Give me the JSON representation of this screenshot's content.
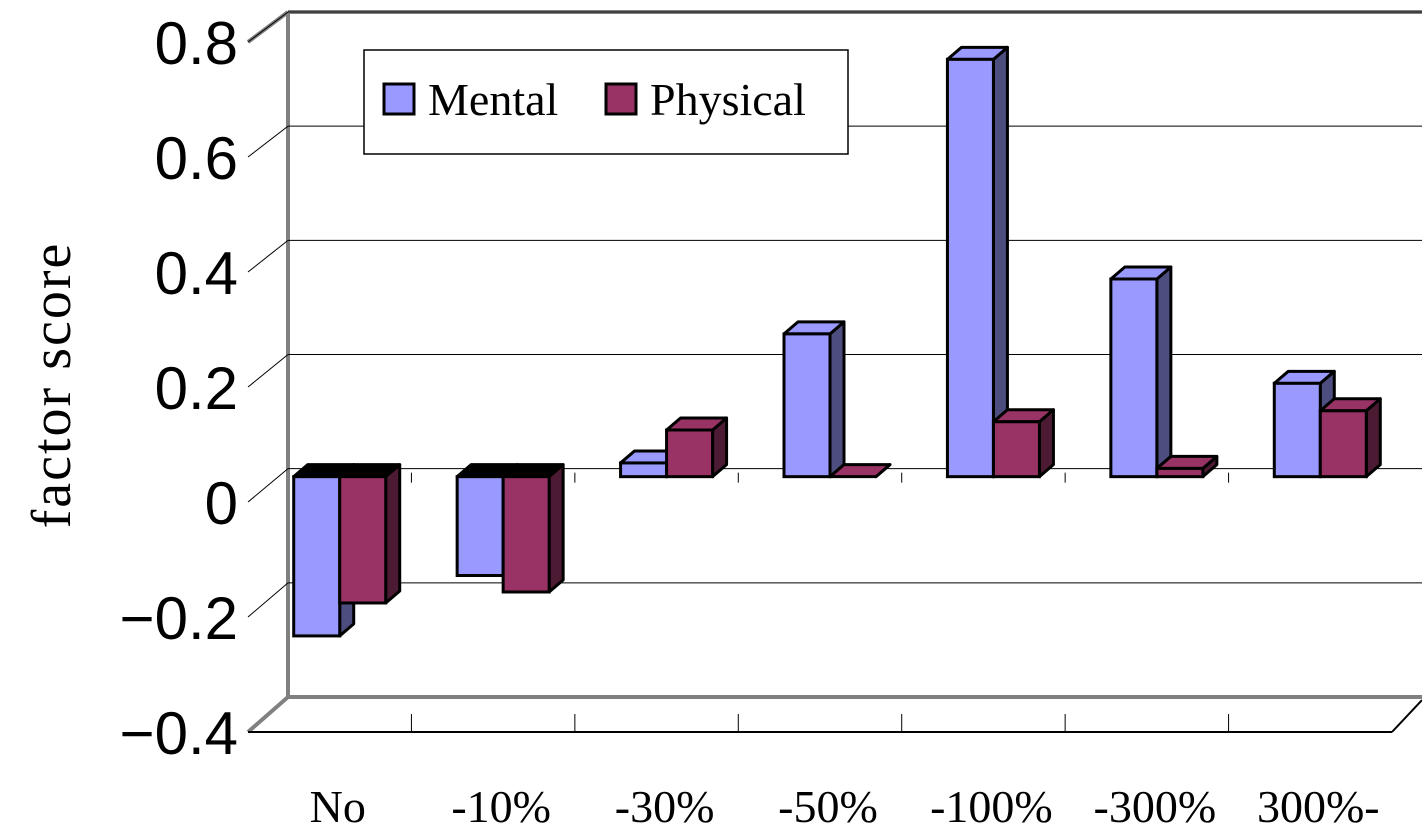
{
  "chart_data": {
    "type": "bar",
    "categories": [
      "No",
      "-10%",
      "-30%",
      "-50%",
      "-100%",
      "-300%",
      "300%-"
    ],
    "series": [
      {
        "name": "Mental",
        "values": [
          -0.29,
          -0.18,
          0.025,
          0.26,
          0.76,
          0.36,
          0.17
        ],
        "color": "#9999FF",
        "side_color": "#4D4D80"
      },
      {
        "name": "Physical",
        "values": [
          -0.23,
          -0.21,
          0.085,
          0.0,
          0.1,
          0.015,
          0.12
        ],
        "color": "#993366",
        "side_color": "#4D1A33"
      }
    ],
    "ylabel": "factor score",
    "xlabel": "",
    "ylim": [
      -0.4,
      0.8
    ],
    "yticks": [
      "−0.4",
      "−0.2",
      "0",
      "0.2",
      "0.4",
      "0.6",
      "0.8"
    ],
    "grid": true,
    "legend_position": "top-left"
  }
}
